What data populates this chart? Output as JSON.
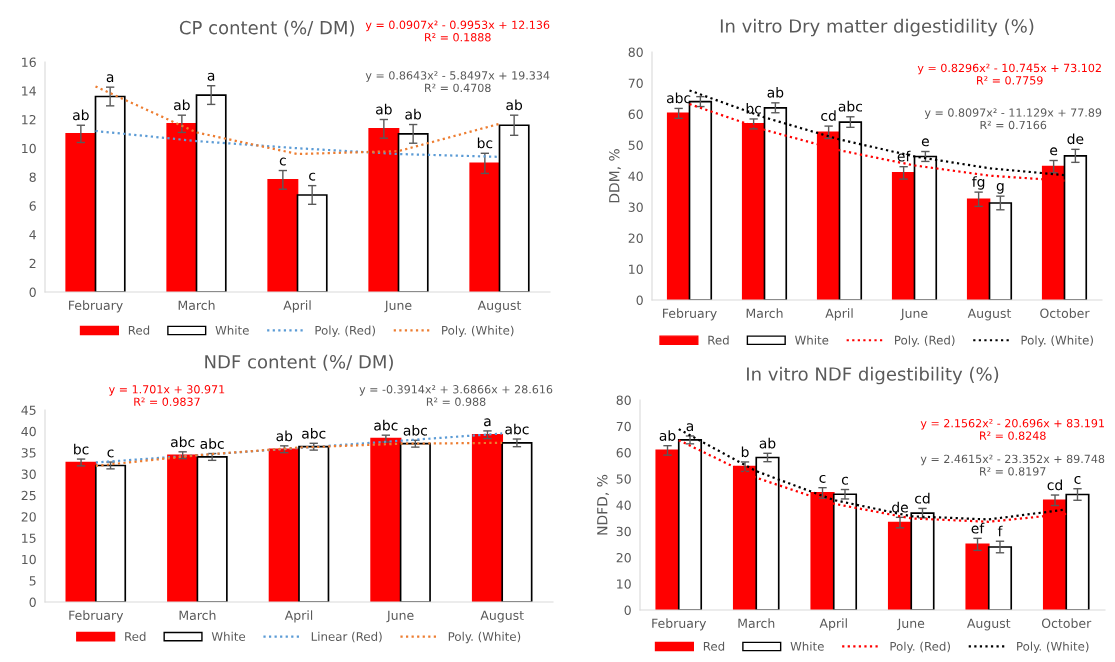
{
  "chart_data": [
    {
      "type": "bar",
      "title": "CP content (%/ DM)",
      "categories": [
        "February",
        "March",
        "April",
        "June",
        "August"
      ],
      "series": [
        {
          "name": "Red",
          "color": "#ff0000",
          "values": [
            11.0,
            11.7,
            7.8,
            11.35,
            8.95
          ],
          "errors": [
            0.6,
            0.6,
            0.65,
            0.65,
            0.7
          ],
          "value_labels": [
            "ab",
            "ab",
            "c",
            "ab",
            "bc"
          ]
        },
        {
          "name": "White",
          "color": "#ffffff",
          "values": [
            13.6,
            13.7,
            6.75,
            11.0,
            11.6
          ],
          "errors": [
            0.65,
            0.65,
            0.65,
            0.65,
            0.7
          ],
          "value_labels": [
            "a",
            "a",
            "c",
            "ab",
            "ab"
          ]
        },
        {
          "name": "Poly. (Red)",
          "type": "line",
          "color": "#5b9bd5",
          "line_style": "dotted",
          "values": [
            11.2,
            10.5,
            10.0,
            9.6,
            9.4
          ]
        },
        {
          "name": "Poly. (White)",
          "type": "line",
          "color": "#ed7d31",
          "line_style": "dotted",
          "values": [
            14.3,
            11.1,
            9.6,
            9.8,
            11.7
          ]
        }
      ],
      "ylim": [
        0,
        16
      ],
      "yticks": [
        0,
        2,
        4,
        6,
        8,
        10,
        12,
        14,
        16
      ],
      "legend": "bottom",
      "annotations": [
        "y = 0.0907x² - 0.9953x + 12.136\nR² = 0.1888",
        "y = 0.8643x² - 5.8497x + 19.334\nR² = 0.4708"
      ]
    },
    {
      "type": "bar",
      "title": "In vitro Dry matter digestidility (%)",
      "ylabel": "DDM, %",
      "categories": [
        "February",
        "March",
        "April",
        "June",
        "August",
        "October"
      ],
      "series": [
        {
          "name": "Red",
          "color": "#ff0000",
          "values": [
            60.2,
            56.8,
            54.1,
            41.0,
            32.5,
            43.0
          ],
          "errors": [
            1.6,
            1.6,
            2.0,
            2.0,
            2.3,
            2.0
          ],
          "value_labels": [
            "abc",
            "bc",
            "cd",
            "ef",
            "fg",
            "e"
          ]
        },
        {
          "name": "White",
          "color": "#ffffff",
          "values": [
            64.0,
            62.0,
            57.4,
            46.3,
            31.3,
            46.5
          ],
          "errors": [
            1.6,
            1.6,
            1.7,
            1.6,
            2.2,
            2.1
          ],
          "value_labels": [
            null,
            "ab",
            "abc",
            "e",
            "g",
            "de"
          ]
        },
        {
          "name": "Poly. (Red)",
          "type": "line",
          "color": "#ff0000",
          "line_style": "dotted",
          "values": [
            63.2,
            54.9,
            48.3,
            43.4,
            40.1,
            38.5
          ]
        },
        {
          "name": "Poly. (White)",
          "type": "line",
          "color": "#000000",
          "line_style": "dotted",
          "values": [
            67.6,
            58.9,
            51.8,
            46.3,
            42.5,
            40.3
          ]
        }
      ],
      "ylim": [
        0,
        80
      ],
      "yticks": [
        0,
        10,
        20,
        30,
        40,
        50,
        60,
        70,
        80
      ],
      "legend": "bottom",
      "annotations": [
        "y = 0.8296x² - 10.745x + 73.102\nR² = 0.7759",
        "y = 0.8097x² - 11.129x + 77.89\nR² = 0.7166"
      ]
    },
    {
      "type": "bar",
      "title": "NDF content (%/ DM)",
      "categories": [
        "February",
        "March",
        "April",
        "June",
        "August"
      ],
      "series": [
        {
          "name": "Red",
          "color": "#ff0000",
          "values": [
            32.7,
            34.4,
            35.8,
            38.3,
            39.2
          ],
          "errors": [
            0.8,
            0.8,
            0.8,
            0.8,
            0.9
          ],
          "value_labels": [
            "bc",
            "abc",
            "ab",
            "abc",
            "a"
          ]
        },
        {
          "name": "White",
          "color": "#ffffff",
          "values": [
            32.0,
            34.0,
            36.4,
            37.1,
            37.3
          ],
          "errors": [
            0.8,
            0.8,
            0.8,
            0.8,
            0.9
          ],
          "value_labels": [
            "c",
            "abc",
            "abc",
            "abc",
            "abc"
          ]
        },
        {
          "name": "Linear (Red)",
          "type": "line",
          "color": "#5b9bd5",
          "line_style": "dotted",
          "values": [
            32.7,
            34.4,
            36.1,
            37.8,
            39.5
          ]
        },
        {
          "name": "Poly. (White)",
          "type": "line",
          "color": "#ed7d31",
          "line_style": "dotted",
          "values": [
            31.9,
            34.4,
            36.2,
            37.1,
            37.3
          ]
        }
      ],
      "ylim": [
        0,
        45
      ],
      "yticks": [
        0,
        5,
        10,
        15,
        20,
        25,
        30,
        35,
        40,
        45
      ],
      "legend": "bottom",
      "annotations": [
        "y = 1.701x + 30.971\nR² = 0.9837",
        "y = -0.3914x² + 3.6866x + 28.616\nR² = 0.988"
      ]
    },
    {
      "type": "bar",
      "title": "In vitro NDF digestibility (%)",
      "ylabel": "NDFD, %",
      "categories": [
        "February",
        "March",
        "April",
        "June",
        "August",
        "October"
      ],
      "series": [
        {
          "name": "Red",
          "color": "#ff0000",
          "values": [
            60.8,
            54.6,
            44.6,
            33.3,
            25.0,
            41.8
          ],
          "errors": [
            1.8,
            1.8,
            2.0,
            2.0,
            2.3,
            2.0
          ],
          "value_labels": [
            "ab",
            "b",
            "c",
            "de",
            "ef",
            "cd"
          ]
        },
        {
          "name": "White",
          "color": "#ffffff",
          "values": [
            64.8,
            58.1,
            44.1,
            36.9,
            24.0,
            44.0
          ],
          "errors": [
            1.5,
            1.6,
            1.8,
            1.8,
            2.2,
            2.2
          ],
          "value_labels": [
            "a",
            "ab",
            "c",
            "cd",
            "f",
            "c"
          ]
        },
        {
          "name": "Poly. (Red)",
          "type": "line",
          "color": "#ff0000",
          "line_style": "dotted",
          "values": [
            64.7,
            50.4,
            40.5,
            34.9,
            33.6,
            36.6
          ]
        },
        {
          "name": "Poly. (White)",
          "type": "line",
          "color": "#000000",
          "line_style": "dotted",
          "values": [
            68.9,
            52.9,
            41.9,
            35.7,
            34.5,
            38.3
          ]
        }
      ],
      "ylim": [
        0,
        80
      ],
      "yticks": [
        0,
        10,
        20,
        30,
        40,
        50,
        60,
        70,
        80
      ],
      "legend": "bottom",
      "annotations": [
        "y = 2.1562x² - 20.696x + 83.191\nR² = 0.8248",
        "y = 2.4615x² - 23.352x + 89.748\nR² = 0.8197"
      ]
    }
  ]
}
